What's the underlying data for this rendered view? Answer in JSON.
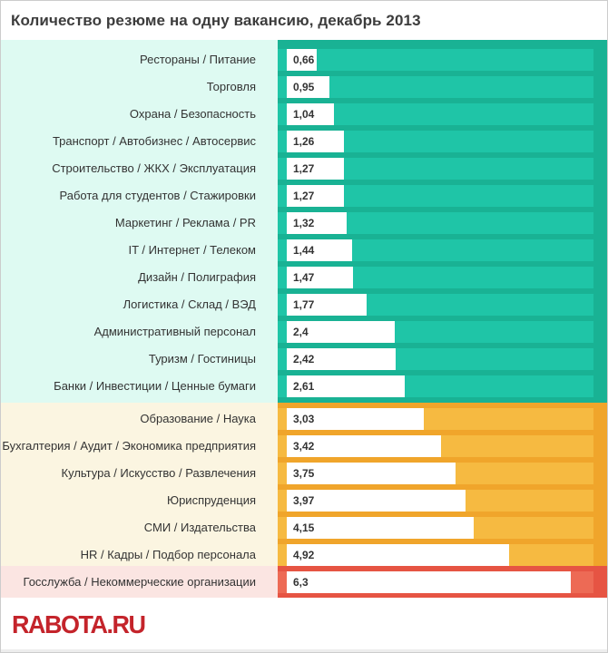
{
  "chart_data": {
    "type": "bar",
    "orientation": "horizontal",
    "title": "Количество резюме на одну вакансию, декабрь 2013",
    "categories": [
      "Рестораны / Питание",
      "Торговля",
      "Охрана / Безопасность",
      "Транспорт / Автобизнес / Автосервис",
      "Строительство / ЖКХ / Эксплуатация",
      "Работа для студентов / Стажировки",
      "Маркетинг / Реклама / PR",
      "IT / Интернет / Телеком",
      "Дизайн / Полиграфия",
      "Логистика / Склад / ВЭД",
      "Административный персонал",
      "Туризм / Гостиницы",
      "Банки / Инвестиции / Ценные бумаги",
      "Образование / Наука",
      "Бухгалтерия / Аудит / Экономика предприятия",
      "Культура / Искусство / Развлечения",
      "Юриспруденция",
      "СМИ / Издательства",
      "HR / Кадры / Подбор персонала",
      "Госслужба / Некоммерческие организации"
    ],
    "values": [
      0.66,
      0.95,
      1.04,
      1.26,
      1.27,
      1.27,
      1.32,
      1.44,
      1.47,
      1.77,
      2.4,
      2.42,
      2.61,
      3.03,
      3.42,
      3.75,
      3.97,
      4.15,
      4.92,
      6.3
    ],
    "display_values": [
      "0,66",
      "0,95",
      "1,04",
      "1,26",
      "1,27",
      "1,27",
      "1,32",
      "1,44",
      "1,47",
      "1,77",
      "2,4",
      "2,42",
      "2,61",
      "3,03",
      "3,42",
      "3,75",
      "3,97",
      "4,15",
      "4,92",
      "6,3"
    ],
    "groups": [
      "green",
      "green",
      "green",
      "green",
      "green",
      "green",
      "green",
      "green",
      "green",
      "green",
      "green",
      "green",
      "green",
      "orange",
      "orange",
      "orange",
      "orange",
      "orange",
      "orange",
      "red"
    ],
    "xlim": [
      0,
      6.84
    ],
    "grid": false,
    "legend": false,
    "value_labels_inside_bars": true
  },
  "footer": {
    "logo_text": "RABOTA.RU"
  },
  "theme": {
    "green": {
      "label_bg": "#defaf2",
      "plot_bg": "#19b294",
      "track": "#1fc5a7"
    },
    "orange": {
      "label_bg": "#fbf5e1",
      "plot_bg": "#f0a52b",
      "track": "#f6ba41"
    },
    "red": {
      "label_bg": "#fbe5e2",
      "plot_bg": "#e65443",
      "track": "#ed6a55"
    },
    "bar_fill": "#ffffff",
    "value_text": "#333333",
    "label_text": "#333333",
    "title_text": "#3c3c3c",
    "logo_red": "#c4242b",
    "border": "#cccccc",
    "footer_strip": "#ededed"
  }
}
